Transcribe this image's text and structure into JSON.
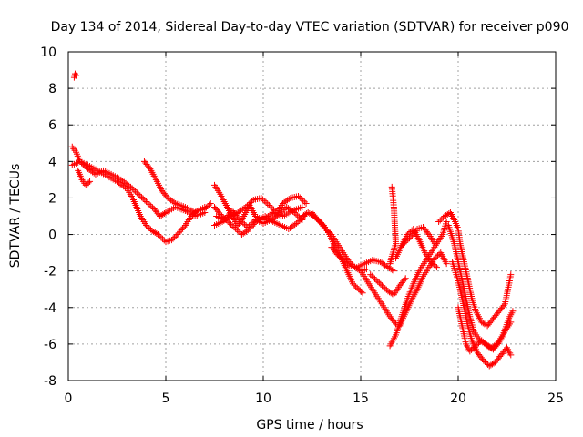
{
  "chart_data": {
    "type": "scatter",
    "title": "Day 134 of 2014, Sidereal Day-to-day VTEC variation (SDTVAR) for receiver p090",
    "xlabel": "GPS time / hours",
    "ylabel": "SDTVAR / TECUs",
    "xlim": [
      0,
      25
    ],
    "ylim": [
      -8,
      10
    ],
    "x_ticks": [
      0,
      5,
      10,
      15,
      20,
      25
    ],
    "y_ticks": [
      -8,
      -6,
      -4,
      -2,
      0,
      2,
      4,
      6,
      8,
      10
    ],
    "grid": true,
    "marker": "+",
    "color": "#ff0000",
    "series": [
      {
        "name": "outlier",
        "points": [
          [
            0.3,
            8.6
          ],
          [
            0.35,
            8.8
          ],
          [
            0.4,
            8.7
          ]
        ]
      },
      {
        "name": "s1",
        "points": [
          [
            0.2,
            4.8
          ],
          [
            0.4,
            4.5
          ],
          [
            0.6,
            4.0
          ],
          [
            1.0,
            3.8
          ],
          [
            1.5,
            3.5
          ],
          [
            2.0,
            3.2
          ],
          [
            2.5,
            2.9
          ],
          [
            3.0,
            2.5
          ],
          [
            3.3,
            2.0
          ],
          [
            3.5,
            1.5
          ],
          [
            3.7,
            1.0
          ],
          [
            4.0,
            0.5
          ],
          [
            4.3,
            0.2
          ],
          [
            4.6,
            0.0
          ],
          [
            5.0,
            -0.4
          ],
          [
            5.3,
            -0.3
          ],
          [
            5.6,
            0.0
          ],
          [
            6.0,
            0.5
          ],
          [
            6.3,
            1.0
          ],
          [
            6.6,
            1.3
          ],
          [
            7.0,
            1.4
          ],
          [
            7.3,
            1.7
          ]
        ]
      },
      {
        "name": "s2",
        "points": [
          [
            0.2,
            3.8
          ],
          [
            0.6,
            4.0
          ],
          [
            1.0,
            3.6
          ],
          [
            1.4,
            3.3
          ],
          [
            1.8,
            3.5
          ],
          [
            2.2,
            3.3
          ],
          [
            2.7,
            3.0
          ],
          [
            3.2,
            2.6
          ],
          [
            3.6,
            2.2
          ],
          [
            4.0,
            1.8
          ],
          [
            4.4,
            1.4
          ],
          [
            4.7,
            1.0
          ],
          [
            5.0,
            1.2
          ],
          [
            5.5,
            1.5
          ],
          [
            6.0,
            1.3
          ],
          [
            6.5,
            1.0
          ],
          [
            7.0,
            1.2
          ]
        ]
      },
      {
        "name": "s3",
        "points": [
          [
            0.5,
            3.5
          ],
          [
            0.7,
            3.0
          ],
          [
            0.9,
            2.7
          ],
          [
            1.1,
            2.9
          ]
        ]
      },
      {
        "name": "s4",
        "points": [
          [
            3.9,
            4.0
          ],
          [
            4.2,
            3.6
          ],
          [
            4.5,
            3.0
          ],
          [
            4.8,
            2.4
          ],
          [
            5.1,
            2.0
          ],
          [
            5.5,
            1.7
          ],
          [
            6.0,
            1.5
          ],
          [
            6.5,
            1.2
          ],
          [
            7.0,
            1.5
          ]
        ]
      },
      {
        "name": "s5",
        "points": [
          [
            7.5,
            2.7
          ],
          [
            7.8,
            2.2
          ],
          [
            8.1,
            1.6
          ],
          [
            8.4,
            1.0
          ],
          [
            8.7,
            0.5
          ],
          [
            9.0,
            1.0
          ],
          [
            9.3,
            1.6
          ],
          [
            9.6,
            1.0
          ],
          [
            10.0,
            0.8
          ],
          [
            10.5,
            1.2
          ],
          [
            11.0,
            1.0
          ],
          [
            11.5,
            1.3
          ],
          [
            12.0,
            1.5
          ]
        ]
      },
      {
        "name": "s6",
        "points": [
          [
            7.5,
            0.5
          ],
          [
            7.9,
            0.7
          ],
          [
            8.3,
            1.0
          ],
          [
            8.7,
            1.2
          ],
          [
            9.1,
            1.5
          ],
          [
            9.5,
            1.9
          ],
          [
            9.9,
            2.0
          ],
          [
            10.3,
            1.6
          ],
          [
            10.7,
            1.2
          ],
          [
            11.0,
            1.7
          ],
          [
            11.4,
            2.0
          ],
          [
            11.8,
            2.1
          ],
          [
            12.2,
            1.7
          ]
        ]
      },
      {
        "name": "s7",
        "points": [
          [
            7.5,
            1.5
          ],
          [
            7.8,
            1.1
          ],
          [
            8.1,
            0.8
          ],
          [
            8.5,
            0.4
          ],
          [
            8.9,
            0.0
          ],
          [
            9.3,
            0.3
          ],
          [
            9.7,
            0.8
          ],
          [
            10.1,
            1.0
          ],
          [
            10.5,
            0.7
          ],
          [
            10.9,
            0.5
          ],
          [
            11.3,
            0.3
          ],
          [
            11.7,
            0.6
          ],
          [
            12.1,
            1.0
          ]
        ]
      },
      {
        "name": "s8",
        "points": [
          [
            7.6,
            1.0
          ],
          [
            8.0,
            0.8
          ],
          [
            8.4,
            1.3
          ],
          [
            8.8,
            0.8
          ],
          [
            9.2,
            0.4
          ],
          [
            9.6,
            0.8
          ],
          [
            10.0,
            0.6
          ],
          [
            10.4,
            0.8
          ],
          [
            10.8,
            1.1
          ],
          [
            11.2,
            1.5
          ],
          [
            11.6,
            1.2
          ],
          [
            12.0,
            0.8
          ]
        ]
      },
      {
        "name": "s9",
        "points": [
          [
            12.0,
            1.0
          ],
          [
            12.3,
            1.2
          ],
          [
            12.6,
            1.0
          ],
          [
            12.9,
            0.7
          ],
          [
            13.2,
            0.3
          ],
          [
            13.5,
            0.0
          ],
          [
            13.8,
            -0.5
          ],
          [
            14.1,
            -1.0
          ],
          [
            14.4,
            -1.5
          ],
          [
            14.7,
            -1.8
          ],
          [
            15.0,
            -2.0
          ],
          [
            15.3,
            -1.9
          ]
        ]
      },
      {
        "name": "s10",
        "points": [
          [
            12.5,
            1.2
          ],
          [
            12.8,
            0.8
          ],
          [
            13.1,
            0.5
          ],
          [
            13.4,
            0.0
          ],
          [
            13.7,
            -0.7
          ],
          [
            14.0,
            -1.3
          ],
          [
            14.3,
            -2.0
          ],
          [
            14.6,
            -2.7
          ],
          [
            14.9,
            -3.0
          ],
          [
            15.1,
            -3.2
          ]
        ]
      },
      {
        "name": "s11",
        "points": [
          [
            13.5,
            -0.7
          ],
          [
            13.8,
            -1.1
          ],
          [
            14.1,
            -1.4
          ],
          [
            14.4,
            -1.7
          ],
          [
            14.8,
            -1.8
          ],
          [
            15.2,
            -1.6
          ],
          [
            15.6,
            -1.4
          ],
          [
            16.0,
            -1.5
          ],
          [
            16.4,
            -1.8
          ],
          [
            16.7,
            -2.0
          ]
        ]
      },
      {
        "name": "s12",
        "points": [
          [
            15.0,
            -2.0
          ],
          [
            15.3,
            -2.5
          ],
          [
            15.6,
            -3.0
          ],
          [
            15.9,
            -3.5
          ],
          [
            16.2,
            -4.0
          ],
          [
            16.5,
            -4.5
          ],
          [
            16.8,
            -4.9
          ]
        ]
      },
      {
        "name": "s13",
        "points": [
          [
            15.5,
            -2.2
          ],
          [
            15.8,
            -2.5
          ],
          [
            16.1,
            -2.8
          ],
          [
            16.4,
            -3.1
          ],
          [
            16.7,
            -3.3
          ],
          [
            17.0,
            -2.8
          ],
          [
            17.3,
            -2.4
          ]
        ]
      },
      {
        "name": "s14",
        "points": [
          [
            16.6,
            2.6
          ],
          [
            16.7,
            1.5
          ],
          [
            16.75,
            0.5
          ],
          [
            16.8,
            -0.5
          ],
          [
            16.6,
            -1.2
          ],
          [
            16.5,
            -1.6
          ]
        ]
      },
      {
        "name": "s15",
        "points": [
          [
            16.5,
            -6.1
          ],
          [
            16.8,
            -5.5
          ],
          [
            17.1,
            -4.5
          ],
          [
            17.4,
            -3.5
          ],
          [
            17.7,
            -2.7
          ],
          [
            18.0,
            -2.0
          ],
          [
            18.3,
            -1.5
          ],
          [
            18.6,
            -1.0
          ],
          [
            18.9,
            -0.5
          ],
          [
            19.2,
            0.0
          ],
          [
            19.4,
            0.7
          ]
        ]
      },
      {
        "name": "s16",
        "points": [
          [
            17.0,
            -5.0
          ],
          [
            17.3,
            -4.3
          ],
          [
            17.6,
            -3.6
          ],
          [
            17.9,
            -3.0
          ],
          [
            18.2,
            -2.3
          ],
          [
            18.5,
            -1.8
          ],
          [
            18.8,
            -1.3
          ],
          [
            19.1,
            -1.0
          ],
          [
            19.4,
            -1.6
          ]
        ]
      },
      {
        "name": "s17",
        "points": [
          [
            16.8,
            -1.3
          ],
          [
            17.1,
            -0.6
          ],
          [
            17.4,
            0.0
          ],
          [
            17.7,
            0.3
          ],
          [
            18.0,
            -0.3
          ],
          [
            18.3,
            -1.0
          ],
          [
            18.6,
            -1.5
          ],
          [
            18.9,
            -1.8
          ]
        ]
      },
      {
        "name": "s18",
        "points": [
          [
            17.1,
            -0.6
          ],
          [
            17.5,
            -0.2
          ],
          [
            17.9,
            0.3
          ],
          [
            18.2,
            0.4
          ],
          [
            18.5,
            0.0
          ],
          [
            18.8,
            -0.5
          ]
        ]
      },
      {
        "name": "s19",
        "points": [
          [
            19.0,
            0.7
          ],
          [
            19.3,
            1.0
          ],
          [
            19.6,
            1.2
          ],
          [
            19.8,
            0.8
          ],
          [
            20.0,
            0.3
          ],
          [
            20.1,
            -0.5
          ],
          [
            20.3,
            -1.5
          ],
          [
            20.5,
            -2.5
          ],
          [
            20.7,
            -3.5
          ],
          [
            20.9,
            -4.2
          ],
          [
            21.2,
            -4.8
          ],
          [
            21.5,
            -5.0
          ],
          [
            21.8,
            -4.6
          ],
          [
            22.1,
            -4.2
          ],
          [
            22.4,
            -3.8
          ],
          [
            22.7,
            -2.2
          ]
        ]
      },
      {
        "name": "s20",
        "points": [
          [
            19.5,
            0.5
          ],
          [
            19.8,
            -0.5
          ],
          [
            20.0,
            -1.5
          ],
          [
            20.2,
            -2.5
          ],
          [
            20.4,
            -3.5
          ],
          [
            20.6,
            -4.5
          ],
          [
            20.8,
            -5.3
          ],
          [
            21.1,
            -5.8
          ],
          [
            21.4,
            -6.0
          ],
          [
            21.7,
            -6.2
          ],
          [
            22.0,
            -6.0
          ],
          [
            22.3,
            -5.5
          ],
          [
            22.6,
            -4.6
          ],
          [
            22.8,
            -4.2
          ]
        ]
      },
      {
        "name": "s21",
        "points": [
          [
            19.7,
            -1.5
          ],
          [
            19.9,
            -2.2
          ],
          [
            20.1,
            -3.0
          ],
          [
            20.3,
            -4.0
          ],
          [
            20.5,
            -5.0
          ],
          [
            20.7,
            -5.8
          ],
          [
            21.0,
            -6.5
          ],
          [
            21.3,
            -6.9
          ],
          [
            21.6,
            -7.2
          ],
          [
            21.9,
            -7.0
          ],
          [
            22.2,
            -6.6
          ],
          [
            22.5,
            -6.2
          ],
          [
            22.7,
            -6.6
          ]
        ]
      },
      {
        "name": "s22",
        "points": [
          [
            20.0,
            -4.0
          ],
          [
            20.2,
            -5.0
          ],
          [
            20.4,
            -6.0
          ],
          [
            20.6,
            -6.4
          ],
          [
            20.9,
            -6.1
          ],
          [
            21.2,
            -5.8
          ],
          [
            21.5,
            -6.1
          ],
          [
            21.8,
            -6.3
          ],
          [
            22.1,
            -5.9
          ],
          [
            22.4,
            -5.3
          ],
          [
            22.7,
            -4.8
          ]
        ]
      }
    ]
  }
}
